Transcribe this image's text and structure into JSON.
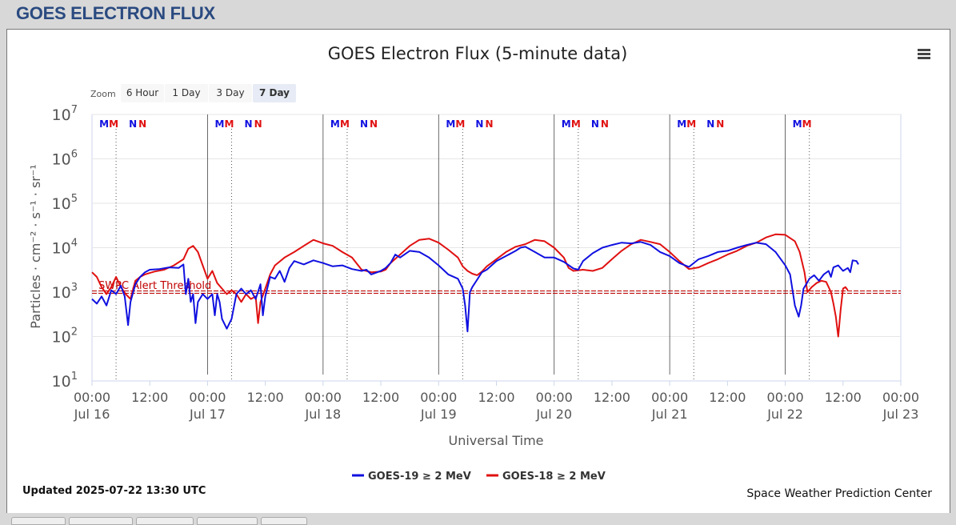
{
  "header": {
    "title": "GOES ELECTRON FLUX"
  },
  "zoom": {
    "label": "Zoom",
    "buttons": [
      "6 Hour",
      "1 Day",
      "3 Day",
      "7 Day"
    ],
    "selected": "7 Day"
  },
  "footer": {
    "updated": "Updated 2025-07-22 13:30 UTC",
    "credit": "Space Weather Prediction Center"
  },
  "colors": {
    "goes19": "#1010e0",
    "goes18": "#e01010",
    "threshold": "#c00000"
  },
  "chart_data": {
    "type": "line",
    "title": "GOES Electron Flux (5-minute data)",
    "xlabel": "Universal Time",
    "ylabel": "Particles · cm⁻² · s⁻¹ · sr⁻¹",
    "yscale": "log",
    "ylim": [
      10,
      10000000
    ],
    "y_ticks": [
      {
        "mant": "10",
        "exp": "1"
      },
      {
        "mant": "10",
        "exp": "2"
      },
      {
        "mant": "10",
        "exp": "3"
      },
      {
        "mant": "10",
        "exp": "4"
      },
      {
        "mant": "10",
        "exp": "5"
      },
      {
        "mant": "10",
        "exp": "6"
      },
      {
        "mant": "10",
        "exp": "7"
      }
    ],
    "x_range_hours": [
      0,
      168
    ],
    "x_ticks": [
      {
        "t": "00:00",
        "d": "Jul 16"
      },
      {
        "t": "12:00",
        "d": ""
      },
      {
        "t": "00:00",
        "d": "Jul 17"
      },
      {
        "t": "12:00",
        "d": ""
      },
      {
        "t": "00:00",
        "d": "Jul 18"
      },
      {
        "t": "12:00",
        "d": ""
      },
      {
        "t": "00:00",
        "d": "Jul 19"
      },
      {
        "t": "12:00",
        "d": ""
      },
      {
        "t": "00:00",
        "d": "Jul 20"
      },
      {
        "t": "12:00",
        "d": ""
      },
      {
        "t": "00:00",
        "d": "Jul 21"
      },
      {
        "t": "12:00",
        "d": ""
      },
      {
        "t": "00:00",
        "d": "Jul 22"
      },
      {
        "t": "12:00",
        "d": ""
      },
      {
        "t": "00:00",
        "d": "Jul 23"
      }
    ],
    "threshold": {
      "label": "SWPC Alert Threshold",
      "value": 1000
    },
    "markers": [
      {
        "label": "M",
        "h": 2.5,
        "color": "#1010e0"
      },
      {
        "label": "M",
        "h": 4.5,
        "color": "#e01010"
      },
      {
        "label": "N",
        "h": 8.5,
        "color": "#1010e0"
      },
      {
        "label": "N",
        "h": 10.5,
        "color": "#e01010"
      },
      {
        "label": "M",
        "h": 26.5,
        "color": "#1010e0"
      },
      {
        "label": "M",
        "h": 28.5,
        "color": "#e01010"
      },
      {
        "label": "N",
        "h": 32.5,
        "color": "#1010e0"
      },
      {
        "label": "N",
        "h": 34.5,
        "color": "#e01010"
      },
      {
        "label": "M",
        "h": 50.5,
        "color": "#1010e0"
      },
      {
        "label": "M",
        "h": 52.5,
        "color": "#e01010"
      },
      {
        "label": "N",
        "h": 56.5,
        "color": "#1010e0"
      },
      {
        "label": "N",
        "h": 58.5,
        "color": "#e01010"
      },
      {
        "label": "M",
        "h": 74.5,
        "color": "#1010e0"
      },
      {
        "label": "M",
        "h": 76.5,
        "color": "#e01010"
      },
      {
        "label": "N",
        "h": 80.5,
        "color": "#1010e0"
      },
      {
        "label": "N",
        "h": 82.5,
        "color": "#e01010"
      },
      {
        "label": "M",
        "h": 98.5,
        "color": "#1010e0"
      },
      {
        "label": "M",
        "h": 100.5,
        "color": "#e01010"
      },
      {
        "label": "N",
        "h": 104.5,
        "color": "#1010e0"
      },
      {
        "label": "N",
        "h": 106.5,
        "color": "#e01010"
      },
      {
        "label": "M",
        "h": 122.5,
        "color": "#1010e0"
      },
      {
        "label": "M",
        "h": 124.5,
        "color": "#e01010"
      },
      {
        "label": "N",
        "h": 128.5,
        "color": "#1010e0"
      },
      {
        "label": "N",
        "h": 130.5,
        "color": "#e01010"
      },
      {
        "label": "M",
        "h": 146.5,
        "color": "#1010e0"
      },
      {
        "label": "M",
        "h": 148.5,
        "color": "#e01010"
      }
    ],
    "dotted_lines_h": [
      5,
      29,
      53,
      77,
      101,
      125,
      149
    ],
    "day_lines_h": [
      24,
      48,
      72,
      96,
      120,
      144
    ],
    "series": [
      {
        "name": "GOES-19 ≥ 2 MeV",
        "color": "#1010e0",
        "points": [
          [
            0,
            700
          ],
          [
            1,
            550
          ],
          [
            2,
            800
          ],
          [
            3,
            500
          ],
          [
            4,
            1100
          ],
          [
            5,
            900
          ],
          [
            6,
            1400
          ],
          [
            6.8,
            800
          ],
          [
            7.5,
            180
          ],
          [
            8,
            600
          ],
          [
            9,
            1500
          ],
          [
            10,
            2200
          ],
          [
            11,
            2800
          ],
          [
            12,
            3200
          ],
          [
            14,
            3300
          ],
          [
            16,
            3600
          ],
          [
            18,
            3500
          ],
          [
            19,
            4200
          ],
          [
            19.5,
            900
          ],
          [
            20,
            2000
          ],
          [
            20.5,
            600
          ],
          [
            21,
            900
          ],
          [
            21.5,
            200
          ],
          [
            22,
            600
          ],
          [
            23,
            900
          ],
          [
            24,
            700
          ],
          [
            25,
            900
          ],
          [
            25.5,
            300
          ],
          [
            26,
            900
          ],
          [
            26.5,
            600
          ],
          [
            27,
            250
          ],
          [
            28,
            150
          ],
          [
            29,
            250
          ],
          [
            30,
            900
          ],
          [
            31,
            1200
          ],
          [
            32,
            900
          ],
          [
            33,
            1100
          ],
          [
            34,
            700
          ],
          [
            35,
            1500
          ],
          [
            35.5,
            300
          ],
          [
            36,
            800
          ],
          [
            37,
            2200
          ],
          [
            38,
            2000
          ],
          [
            39,
            3000
          ],
          [
            40,
            1700
          ],
          [
            41,
            3500
          ],
          [
            42,
            5000
          ],
          [
            44,
            4200
          ],
          [
            46,
            5200
          ],
          [
            48,
            4500
          ],
          [
            50,
            3800
          ],
          [
            52,
            4000
          ],
          [
            54,
            3300
          ],
          [
            56,
            3000
          ],
          [
            57,
            3200
          ],
          [
            58,
            2500
          ],
          [
            60,
            3000
          ],
          [
            61,
            3500
          ],
          [
            62,
            4500
          ],
          [
            63,
            7000
          ],
          [
            64,
            6000
          ],
          [
            66,
            8500
          ],
          [
            68,
            8000
          ],
          [
            70,
            6000
          ],
          [
            72,
            4000
          ],
          [
            74,
            2500
          ],
          [
            76,
            2000
          ],
          [
            77,
            1200
          ],
          [
            77.5,
            500
          ],
          [
            78,
            130
          ],
          [
            78.5,
            1000
          ],
          [
            79,
            1300
          ],
          [
            80,
            1900
          ],
          [
            81,
            2800
          ],
          [
            82,
            3200
          ],
          [
            84,
            5000
          ],
          [
            86,
            6500
          ],
          [
            88,
            8500
          ],
          [
            89,
            10000
          ],
          [
            90,
            10500
          ],
          [
            92,
            8000
          ],
          [
            94,
            6000
          ],
          [
            96,
            6000
          ],
          [
            98,
            4800
          ],
          [
            100,
            3400
          ],
          [
            101,
            3200
          ],
          [
            102,
            5000
          ],
          [
            104,
            7500
          ],
          [
            106,
            10000
          ],
          [
            108,
            11500
          ],
          [
            110,
            13000
          ],
          [
            112,
            12500
          ],
          [
            114,
            13500
          ],
          [
            116,
            11500
          ],
          [
            118,
            8000
          ],
          [
            120,
            6500
          ],
          [
            122,
            4500
          ],
          [
            124,
            3700
          ],
          [
            126,
            5500
          ],
          [
            128,
            6500
          ],
          [
            130,
            8000
          ],
          [
            132,
            8500
          ],
          [
            134,
            10000
          ],
          [
            136,
            11500
          ],
          [
            138,
            13000
          ],
          [
            140,
            12000
          ],
          [
            142,
            8000
          ],
          [
            144,
            4000
          ],
          [
            145,
            2500
          ],
          [
            146,
            500
          ],
          [
            146.8,
            280
          ],
          [
            147.3,
            500
          ],
          [
            147.8,
            1200
          ],
          [
            148.5,
            1600
          ],
          [
            149,
            2000
          ],
          [
            150,
            2400
          ],
          [
            151,
            1800
          ],
          [
            152,
            2500
          ],
          [
            153,
            3000
          ],
          [
            153.5,
            2200
          ],
          [
            154,
            3600
          ],
          [
            155,
            4000
          ],
          [
            156,
            3000
          ],
          [
            157,
            3500
          ],
          [
            157.5,
            2800
          ],
          [
            158,
            5200
          ],
          [
            158.8,
            5000
          ],
          [
            159.2,
            4200
          ]
        ]
      },
      {
        "name": "GOES-18 ≥ 2 MeV",
        "color": "#e01010",
        "points": [
          [
            0,
            2800
          ],
          [
            1,
            2200
          ],
          [
            2,
            1300
          ],
          [
            3,
            900
          ],
          [
            4,
            1300
          ],
          [
            5,
            2200
          ],
          [
            6,
            1300
          ],
          [
            7,
            900
          ],
          [
            8,
            700
          ],
          [
            9,
            1800
          ],
          [
            10,
            2200
          ],
          [
            11,
            2500
          ],
          [
            12,
            2700
          ],
          [
            13,
            2900
          ],
          [
            15,
            3200
          ],
          [
            17,
            4000
          ],
          [
            19,
            5500
          ],
          [
            20,
            9500
          ],
          [
            21,
            11000
          ],
          [
            22,
            8000
          ],
          [
            23,
            4000
          ],
          [
            24,
            2000
          ],
          [
            25,
            3000
          ],
          [
            26,
            1600
          ],
          [
            27,
            1200
          ],
          [
            28,
            900
          ],
          [
            29,
            1100
          ],
          [
            30,
            900
          ],
          [
            31,
            600
          ],
          [
            32,
            900
          ],
          [
            33,
            700
          ],
          [
            34,
            800
          ],
          [
            34.5,
            200
          ],
          [
            35,
            600
          ],
          [
            36,
            1200
          ],
          [
            37,
            2500
          ],
          [
            38,
            4000
          ],
          [
            40,
            6000
          ],
          [
            42,
            8000
          ],
          [
            44,
            11000
          ],
          [
            46,
            15000
          ],
          [
            48,
            12500
          ],
          [
            50,
            11000
          ],
          [
            52,
            8000
          ],
          [
            54,
            6000
          ],
          [
            56,
            3200
          ],
          [
            58,
            2800
          ],
          [
            60,
            2900
          ],
          [
            61,
            3200
          ],
          [
            62,
            4500
          ],
          [
            64,
            7000
          ],
          [
            66,
            11000
          ],
          [
            68,
            15000
          ],
          [
            70,
            16000
          ],
          [
            72,
            13000
          ],
          [
            74,
            9000
          ],
          [
            76,
            6000
          ],
          [
            77,
            3800
          ],
          [
            78,
            3000
          ],
          [
            79,
            2600
          ],
          [
            80,
            2400
          ],
          [
            81,
            2900
          ],
          [
            82,
            3800
          ],
          [
            84,
            5500
          ],
          [
            86,
            8000
          ],
          [
            88,
            10500
          ],
          [
            90,
            12000
          ],
          [
            92,
            15000
          ],
          [
            94,
            14000
          ],
          [
            96,
            10000
          ],
          [
            98,
            6000
          ],
          [
            99,
            3500
          ],
          [
            100,
            3000
          ],
          [
            102,
            3200
          ],
          [
            104,
            3000
          ],
          [
            106,
            3500
          ],
          [
            108,
            5500
          ],
          [
            110,
            8500
          ],
          [
            112,
            12000
          ],
          [
            114,
            15000
          ],
          [
            116,
            13500
          ],
          [
            118,
            12000
          ],
          [
            120,
            8000
          ],
          [
            122,
            5000
          ],
          [
            124,
            3300
          ],
          [
            126,
            3600
          ],
          [
            128,
            4500
          ],
          [
            130,
            5500
          ],
          [
            132,
            7000
          ],
          [
            134,
            8500
          ],
          [
            136,
            11000
          ],
          [
            138,
            13000
          ],
          [
            140,
            17000
          ],
          [
            142,
            20000
          ],
          [
            144,
            19500
          ],
          [
            146,
            14000
          ],
          [
            147,
            8000
          ],
          [
            148,
            2800
          ],
          [
            148.6,
            1000
          ],
          [
            149.5,
            1300
          ],
          [
            150.5,
            1600
          ],
          [
            151.5,
            1800
          ],
          [
            152.5,
            1700
          ],
          [
            153.5,
            1000
          ],
          [
            154,
            550
          ],
          [
            154.5,
            280
          ],
          [
            155,
            100
          ],
          [
            155.5,
            400
          ],
          [
            156,
            1200
          ],
          [
            156.5,
            1300
          ],
          [
            157,
            1100
          ]
        ]
      }
    ]
  }
}
